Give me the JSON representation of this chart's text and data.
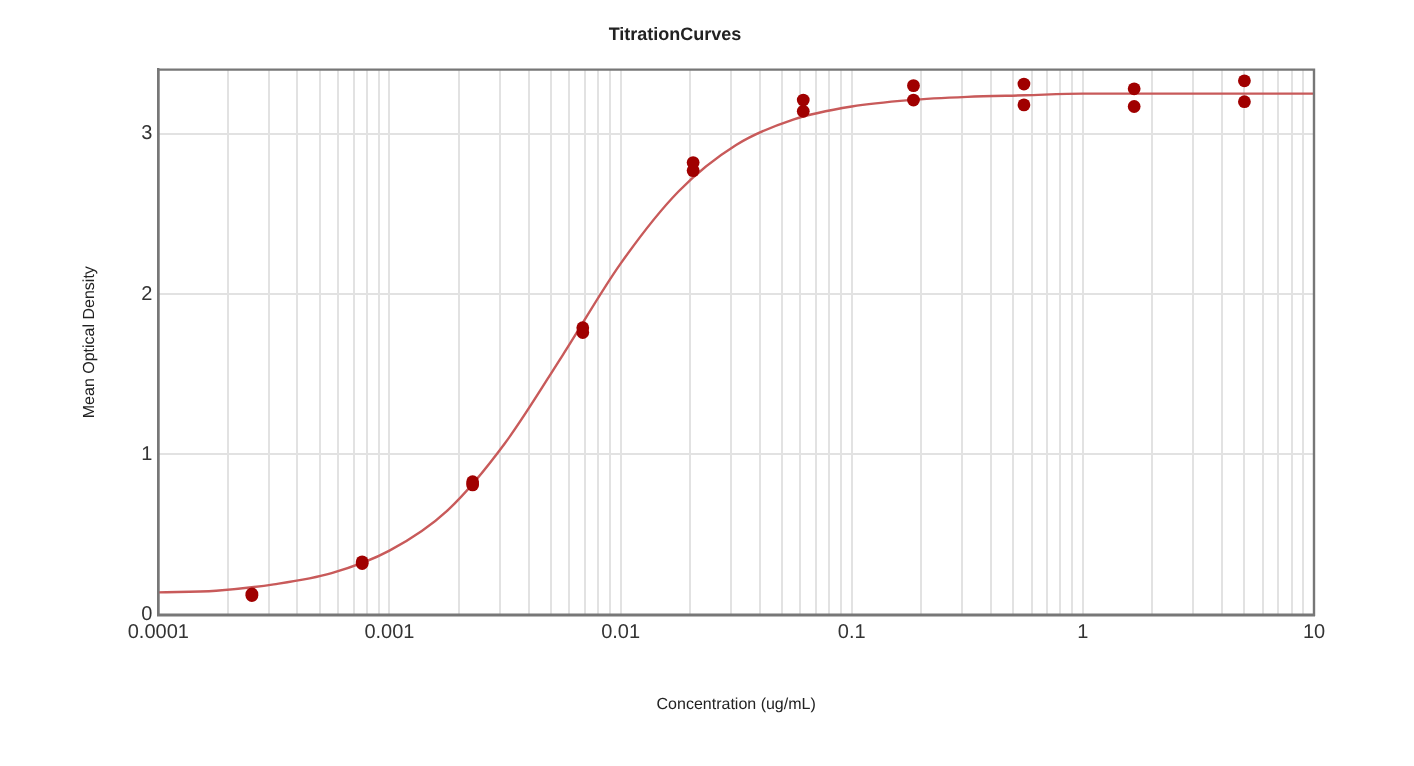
{
  "chart_data": {
    "type": "scatter",
    "title": "TitrationCurves",
    "xlabel": "Concentration (ug/mL)",
    "ylabel": "Mean Optical Density",
    "log": "x",
    "grid": true,
    "legend": false,
    "marker": "circle",
    "xlim": [
      0.0001,
      10
    ],
    "ylim": [
      0,
      3.4
    ],
    "xticks": [
      0.0001,
      {
        "value": 0.0002,
        "label": null
      },
      {
        "value": 0.0003,
        "label": null
      },
      {
        "value": 0.0004,
        "label": null
      },
      {
        "value": 0.0005,
        "label": null
      },
      {
        "value": 0.0006,
        "label": null
      },
      {
        "value": 0.0007,
        "label": null
      },
      {
        "value": 0.0008,
        "label": null
      },
      {
        "value": 0.0009,
        "label": null
      },
      0.001,
      {
        "value": 0.002,
        "label": null
      },
      {
        "value": 0.003,
        "label": null
      },
      {
        "value": 0.004,
        "label": null
      },
      {
        "value": 0.005,
        "label": null
      },
      {
        "value": 0.006,
        "label": null
      },
      {
        "value": 0.007,
        "label": null
      },
      {
        "value": 0.008,
        "label": null
      },
      {
        "value": 0.009,
        "label": null
      },
      0.01,
      {
        "value": 0.02,
        "label": null
      },
      {
        "value": 0.03,
        "label": null
      },
      {
        "value": 0.04,
        "label": null
      },
      {
        "value": 0.05,
        "label": null
      },
      {
        "value": 0.06,
        "label": null
      },
      {
        "value": 0.07,
        "label": null
      },
      {
        "value": 0.08,
        "label": null
      },
      {
        "value": 0.09,
        "label": null
      },
      0.1,
      {
        "value": 0.2,
        "label": null
      },
      {
        "value": 0.3,
        "label": null
      },
      {
        "value": 0.4,
        "label": null
      },
      {
        "value": 0.5,
        "label": null
      },
      {
        "value": 0.6,
        "label": null
      },
      {
        "value": 0.7,
        "label": null
      },
      {
        "value": 0.8,
        "label": null
      },
      {
        "value": 0.9,
        "label": null
      },
      1,
      {
        "value": 2,
        "label": null
      },
      {
        "value": 3,
        "label": null
      },
      {
        "value": 4,
        "label": null
      },
      {
        "value": 5,
        "label": null
      },
      {
        "value": 6,
        "label": null
      },
      {
        "value": 7,
        "label": null
      },
      {
        "value": 8,
        "label": null
      },
      {
        "value": 9,
        "label": null
      },
      10
    ],
    "yticks": [
      0,
      1,
      2,
      3
    ],
    "series": [
      {
        "type": "line",
        "color": "#c85a5a",
        "marker": "none",
        "x": [
          0.0001,
          0.000178,
          0.000316,
          0.000562,
          0.001,
          0.00178,
          0.00316,
          0.00562,
          0.01,
          0.0178,
          0.0316,
          0.0562,
          0.1,
          0.178,
          0.316,
          0.562,
          1,
          1.78,
          3.16,
          5.62,
          10
        ],
        "values": [
          0.14,
          0.15,
          0.19,
          0.26,
          0.4,
          0.65,
          1.07,
          1.62,
          2.19,
          2.64,
          2.93,
          3.09,
          3.17,
          3.21,
          3.23,
          3.24,
          3.25,
          3.25,
          3.25,
          3.25,
          3.25
        ]
      },
      {
        "color": "#a00000",
        "x": [
          0.000254,
          0.000254,
          0.000762,
          0.000762,
          0.00229,
          0.00229,
          0.00686,
          0.00686,
          0.0206,
          0.0206,
          0.0617,
          0.0617,
          0.185,
          0.185,
          0.556,
          0.556,
          1.667,
          1.667,
          5,
          5
        ],
        "values": [
          0.13,
          0.12,
          0.33,
          0.32,
          0.83,
          0.81,
          1.79,
          1.76,
          2.82,
          2.77,
          3.21,
          3.14,
          3.3,
          3.21,
          3.31,
          3.18,
          3.28,
          3.17,
          3.33,
          3.2
        ]
      }
    ]
  }
}
